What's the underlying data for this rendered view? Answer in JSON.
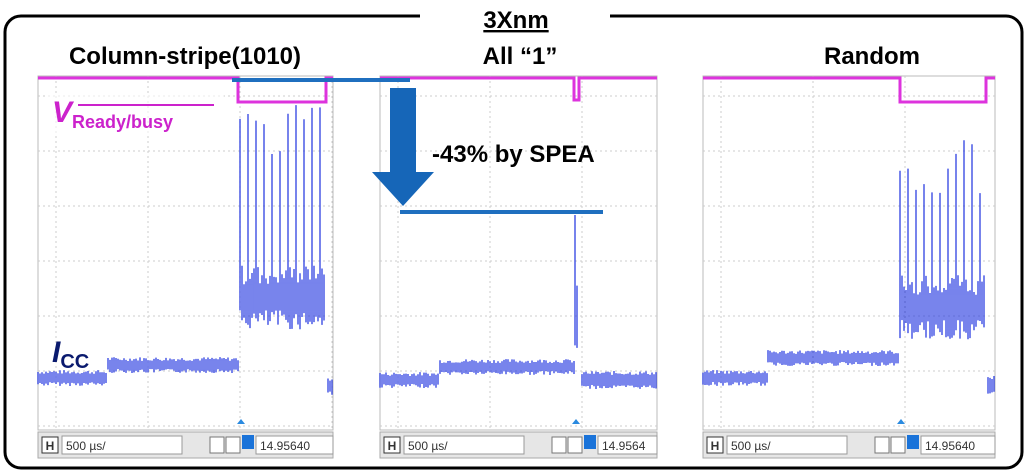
{
  "header": {
    "title": "3Xnm"
  },
  "panels": [
    {
      "title": "Column-stripe(1010)",
      "footer": {
        "mode": "H",
        "timebase": "500 µs/",
        "position": "14.95640"
      }
    },
    {
      "title": "All “1”",
      "footer": {
        "mode": "H",
        "timebase": "500 µs/",
        "position": "14.9564"
      }
    },
    {
      "title": "Random",
      "footer": {
        "mode": "H",
        "timebase": "500 µs/",
        "position": "14.95640"
      }
    }
  ],
  "labels": {
    "v": "V",
    "v_sub": "Ready/busy",
    "i": "I",
    "i_sub": "CC"
  },
  "annotation": "-43% by SPEA"
}
